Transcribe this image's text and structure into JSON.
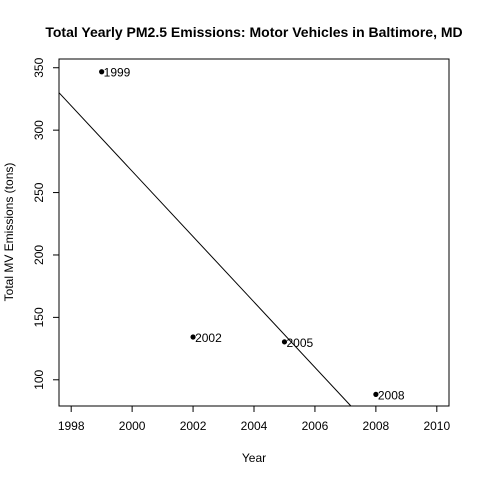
{
  "chart_data": {
    "type": "scatter",
    "title": "Total Yearly PM2.5 Emissions: Motor Vehicles in Baltimore, MD",
    "xlabel": "Year",
    "ylabel": "Total MV Emissions (tons)",
    "xlim": [
      1997.6,
      2010.4
    ],
    "ylim": [
      79,
      357
    ],
    "xticks": [
      1998,
      2000,
      2002,
      2004,
      2006,
      2008,
      2010
    ],
    "yticks": [
      100,
      150,
      200,
      250,
      300,
      350
    ],
    "grid": false,
    "points": [
      {
        "x": 1999,
        "y": 346.8,
        "label": "1999"
      },
      {
        "x": 2002,
        "y": 134.3,
        "label": "2002"
      },
      {
        "x": 2005,
        "y": 130.4,
        "label": "2005"
      },
      {
        "x": 2008,
        "y": 88.3,
        "label": "2008"
      }
    ],
    "trend_line": {
      "type": "linear",
      "intercept_at_x": 1997.6,
      "y_at_intercept": 330,
      "slope": -26.2
    }
  }
}
